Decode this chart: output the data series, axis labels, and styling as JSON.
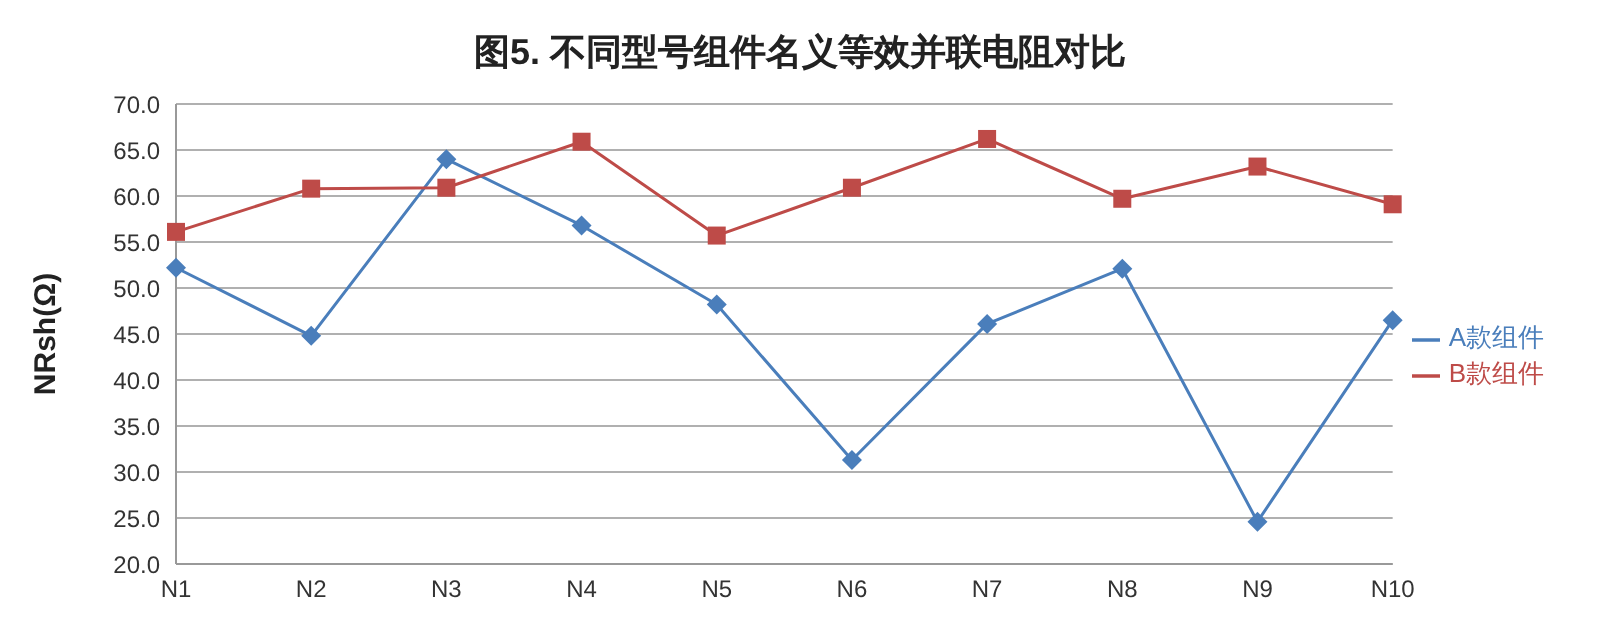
{
  "chart_data": {
    "type": "line",
    "title": "图5. 不同型号组件名义等效并联电阻对比",
    "ylabel": "NRsh(Ω)",
    "categories": [
      "N1",
      "N2",
      "N3",
      "N4",
      "N5",
      "N6",
      "N7",
      "N8",
      "N9",
      "N10"
    ],
    "series": [
      {
        "name": "A款组件",
        "color": "#4a7ebb",
        "marker": "diamond",
        "values": [
          52.2,
          44.8,
          64.0,
          56.8,
          48.2,
          31.3,
          46.1,
          52.1,
          24.6,
          46.5
        ]
      },
      {
        "name": "B款组件",
        "color": "#be4b48",
        "marker": "square",
        "values": [
          56.1,
          60.8,
          60.9,
          65.9,
          55.7,
          60.9,
          66.2,
          59.7,
          63.2,
          59.1
        ]
      }
    ],
    "ylim": [
      20,
      70
    ],
    "yticks": [
      {
        "value": 20,
        "label": "20.0"
      },
      {
        "value": 25,
        "label": "25.0"
      },
      {
        "value": 30,
        "label": "30.0"
      },
      {
        "value": 35,
        "label": "35.0"
      },
      {
        "value": 40,
        "label": "40.0"
      },
      {
        "value": 45,
        "label": "45.0"
      },
      {
        "value": 50,
        "label": "50.0"
      },
      {
        "value": 55,
        "label": "55.0"
      },
      {
        "value": 60,
        "label": "60.0"
      },
      {
        "value": 65,
        "label": "65.0"
      },
      {
        "value": 70,
        "label": "70.0"
      }
    ],
    "grid": "y",
    "legend": "right"
  }
}
